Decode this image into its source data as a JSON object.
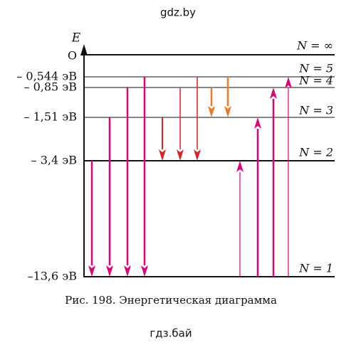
{
  "watermark_top": "gdz.by",
  "axis_label": "E",
  "levels": [
    {
      "energy": "O",
      "n": "N = ∞"
    },
    {
      "energy": "– 0,544 эВ",
      "n": "N = 5"
    },
    {
      "energy": "– 0,85 эВ",
      "n": "N = 4"
    },
    {
      "energy": "– 1,51 эВ",
      "n": "N = 3"
    },
    {
      "energy": "– 3,4 эВ",
      "n": "N = 2"
    },
    {
      "energy": "–13,6 эВ",
      "n": "N = 1"
    }
  ],
  "caption": "Рис. 198. Энергетическая диаграмма",
  "watermark_bottom": "гдз.бай"
}
